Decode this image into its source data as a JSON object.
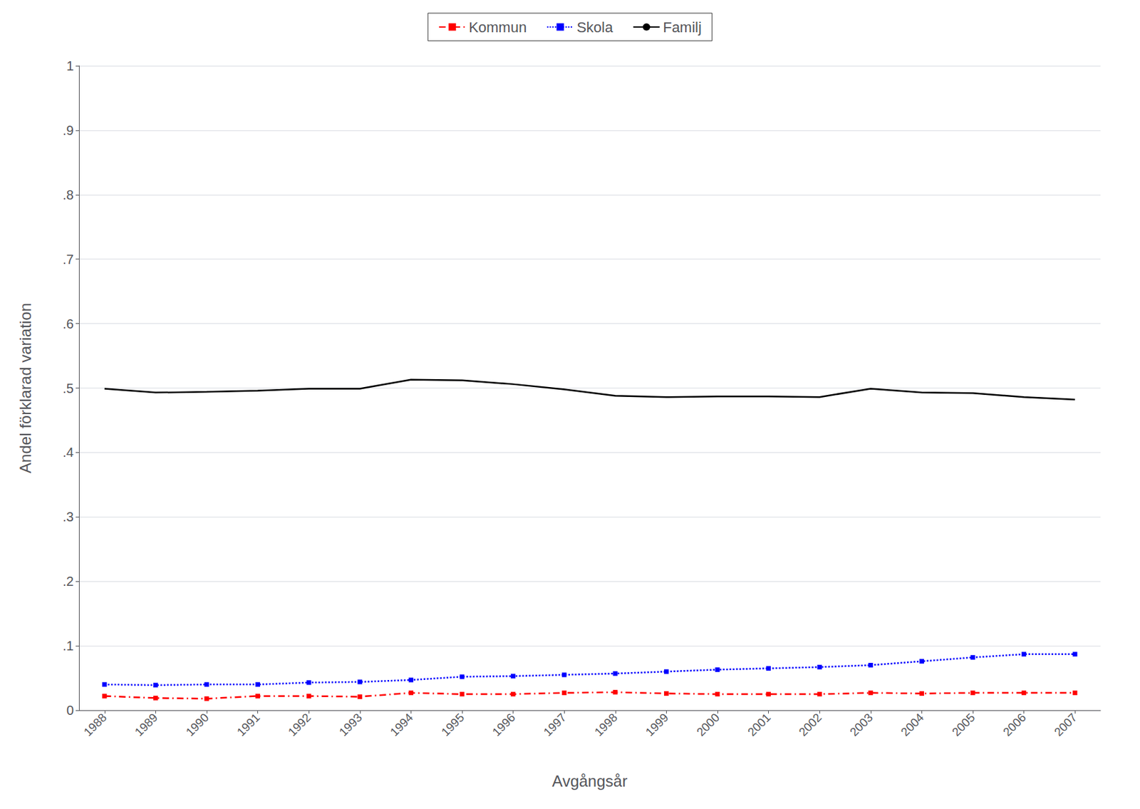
{
  "chart_data": {
    "type": "line",
    "xlabel": "Avgångsår",
    "ylabel": "Andel förklarad variation",
    "x": [
      1988,
      1989,
      1990,
      1991,
      1992,
      1993,
      1994,
      1995,
      1996,
      1997,
      1998,
      1999,
      2000,
      2001,
      2002,
      2003,
      2004,
      2005,
      2006,
      2007
    ],
    "series": [
      {
        "name": "Kommun",
        "color": "#FF0000",
        "marker": "square",
        "line_style": "dashdot",
        "values": [
          0.022,
          0.019,
          0.018,
          0.022,
          0.022,
          0.021,
          0.027,
          0.025,
          0.025,
          0.027,
          0.028,
          0.026,
          0.025,
          0.025,
          0.025,
          0.027,
          0.026,
          0.027,
          0.027,
          0.027
        ]
      },
      {
        "name": "Skola",
        "color": "#0000FF",
        "marker": "square",
        "line_style": "dotted",
        "values": [
          0.04,
          0.039,
          0.04,
          0.04,
          0.043,
          0.044,
          0.047,
          0.052,
          0.053,
          0.055,
          0.057,
          0.06,
          0.063,
          0.065,
          0.067,
          0.07,
          0.076,
          0.082,
          0.087,
          0.087
        ]
      },
      {
        "name": "Familj",
        "color": "#000000",
        "marker": "none",
        "line_style": "solid",
        "values": [
          0.499,
          0.493,
          0.494,
          0.496,
          0.499,
          0.499,
          0.513,
          0.512,
          0.506,
          0.498,
          0.488,
          0.486,
          0.487,
          0.487,
          0.486,
          0.499,
          0.493,
          0.492,
          0.486,
          0.482
        ]
      }
    ],
    "xlim": [
      1987.5,
      2007.5
    ],
    "xticks": [
      1988,
      1989,
      1990,
      1991,
      1992,
      1993,
      1994,
      1995,
      1996,
      1997,
      1998,
      1999,
      2000,
      2001,
      2002,
      2003,
      2004,
      2005,
      2006,
      2007
    ],
    "ylim": [
      0,
      1.0
    ],
    "yticks": [
      0,
      {
        "value": 0.1,
        "label": ".1"
      },
      {
        "value": 0.2,
        "label": ".2"
      },
      {
        "value": 0.3,
        "label": ".3"
      },
      {
        "value": 0.4,
        "label": ".4"
      },
      {
        "value": 0.5,
        "label": ".5"
      },
      {
        "value": 0.6,
        "label": ".6"
      },
      {
        "value": 0.7,
        "label": ".7"
      },
      {
        "value": 0.8,
        "label": ".8"
      },
      {
        "value": 0.9,
        "label": ".9"
      },
      1
    ],
    "grid": true,
    "legend": "top"
  }
}
